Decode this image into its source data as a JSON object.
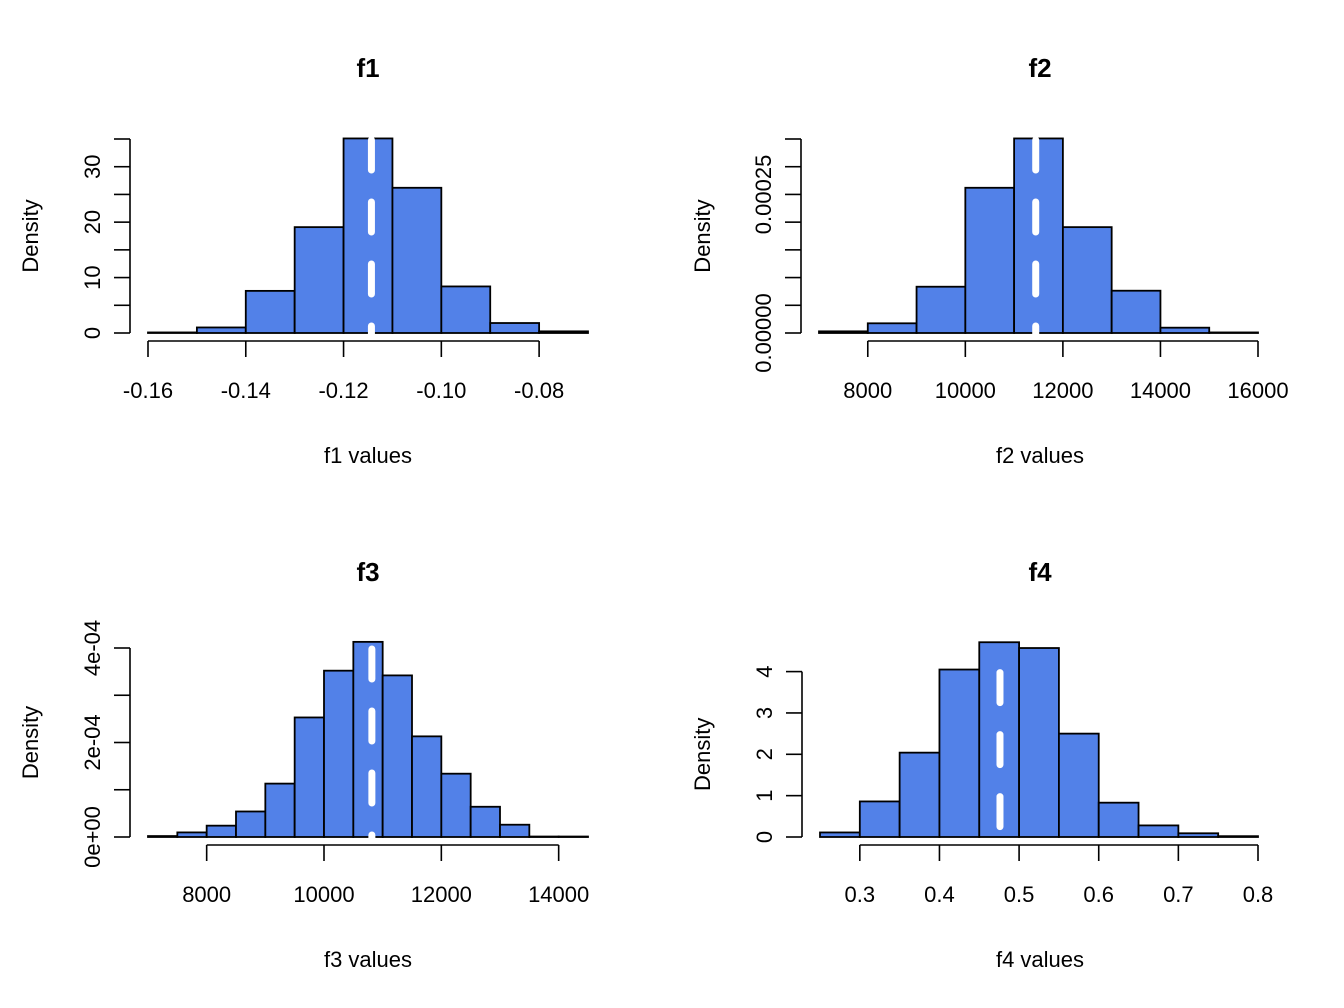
{
  "style": {
    "bar_fill": "#5281E8",
    "bar_stroke": "#000000",
    "mean_line_color": "#ffffff",
    "background": "#ffffff"
  },
  "chart_data": [
    {
      "type": "bar",
      "subtype": "histogram",
      "title": "f1",
      "xlabel": "f1 values",
      "ylabel": "Density",
      "bin_edges": [
        -0.16,
        -0.15,
        -0.14,
        -0.13,
        -0.12,
        -0.11,
        -0.1,
        -0.09,
        -0.08,
        -0.07
      ],
      "values": [
        0.1,
        1.0,
        7.6,
        19.1,
        35.1,
        26.2,
        8.4,
        1.8,
        0.3
      ],
      "xlim": [
        -0.16,
        -0.07
      ],
      "ylim": [
        0,
        35
      ],
      "x_ticks": [
        -0.16,
        -0.14,
        -0.12,
        -0.1,
        -0.08
      ],
      "x_tick_labels": [
        "-0.16",
        "-0.14",
        "-0.12",
        "-0.10",
        "-0.08"
      ],
      "y_ticks": [
        0,
        5,
        10,
        15,
        20,
        25,
        30,
        35
      ],
      "y_tick_labels": [
        "0",
        "10",
        "20",
        "30"
      ],
      "y_labeled_ticks": [
        0,
        10,
        20,
        30
      ],
      "mean_line": -0.1143,
      "grid": false
    },
    {
      "type": "bar",
      "subtype": "histogram",
      "title": "f2",
      "xlabel": "f2 values",
      "ylabel": "Density",
      "bin_edges": [
        7000,
        8000,
        9000,
        10000,
        11000,
        12000,
        13000,
        14000,
        15000,
        16000
      ],
      "values": [
        3e-06,
        1.75e-05,
        8.35e-05,
        0.000262,
        0.000351,
        0.000191,
        7.63e-05,
        9.6e-06,
        1e-06
      ],
      "xlim": [
        7000,
        16000
      ],
      "ylim": [
        0,
        0.00035
      ],
      "x_ticks": [
        8000,
        10000,
        12000,
        14000,
        16000
      ],
      "x_tick_labels": [
        "8000",
        "10000",
        "12000",
        "14000",
        "16000"
      ],
      "y_ticks": [
        0,
        5e-05,
        0.0001,
        0.00015,
        0.0002,
        0.00025,
        0.0003,
        0.00035
      ],
      "y_tick_labels": [
        "0.00000",
        "0.00025"
      ],
      "y_labeled_ticks": [
        0,
        0.00025
      ],
      "mean_line": 11443,
      "grid": false
    },
    {
      "type": "bar",
      "subtype": "histogram",
      "title": "f3",
      "xlabel": "f3 values",
      "ylabel": "Density",
      "bin_edges": [
        7000,
        7500,
        8000,
        8500,
        9000,
        9500,
        10000,
        10500,
        11000,
        11500,
        12000,
        12500,
        13000,
        13500,
        14000,
        14500
      ],
      "values": [
        2e-06,
        9.7e-06,
        2.4e-05,
        5.4e-05,
        0.000113,
        0.000253,
        0.000352,
        0.000413,
        0.000342,
        0.000213,
        0.000134,
        6.4e-05,
        2.6e-05,
        1e-06,
        1e-06
      ],
      "xlim": [
        7000,
        14500
      ],
      "ylim": [
        0,
        0.0004
      ],
      "x_ticks": [
        8000,
        10000,
        12000,
        14000
      ],
      "x_tick_labels": [
        "8000",
        "10000",
        "12000",
        "14000"
      ],
      "y_ticks": [
        0,
        0.0001,
        0.0002,
        0.0003,
        0.0004
      ],
      "y_tick_labels": [
        "0e+00",
        "2e-04",
        "4e-04"
      ],
      "y_labeled_ticks": [
        0,
        0.0002,
        0.0004
      ],
      "mean_line": 10816,
      "grid": false
    },
    {
      "type": "bar",
      "subtype": "histogram",
      "title": "f4",
      "xlabel": "f4 values",
      "ylabel": "Density",
      "bin_edges": [
        0.25,
        0.3,
        0.35,
        0.4,
        0.45,
        0.5,
        0.55,
        0.6,
        0.65,
        0.7,
        0.75,
        0.8
      ],
      "values": [
        0.11,
        0.86,
        2.04,
        4.05,
        4.71,
        4.57,
        2.5,
        0.83,
        0.28,
        0.09,
        0.02
      ],
      "xlim": [
        0.25,
        0.8
      ],
      "ylim": [
        0,
        4
      ],
      "x_ticks": [
        0.3,
        0.4,
        0.5,
        0.6,
        0.7,
        0.8
      ],
      "x_tick_labels": [
        "0.3",
        "0.4",
        "0.5",
        "0.6",
        "0.7",
        "0.8"
      ],
      "y_ticks": [
        0,
        1,
        2,
        3,
        4
      ],
      "y_tick_labels": [
        "0",
        "1",
        "2",
        "3",
        "4"
      ],
      "y_labeled_ticks": [
        0,
        1,
        2,
        3,
        4
      ],
      "mean_line": 0.476,
      "grid": false
    }
  ]
}
